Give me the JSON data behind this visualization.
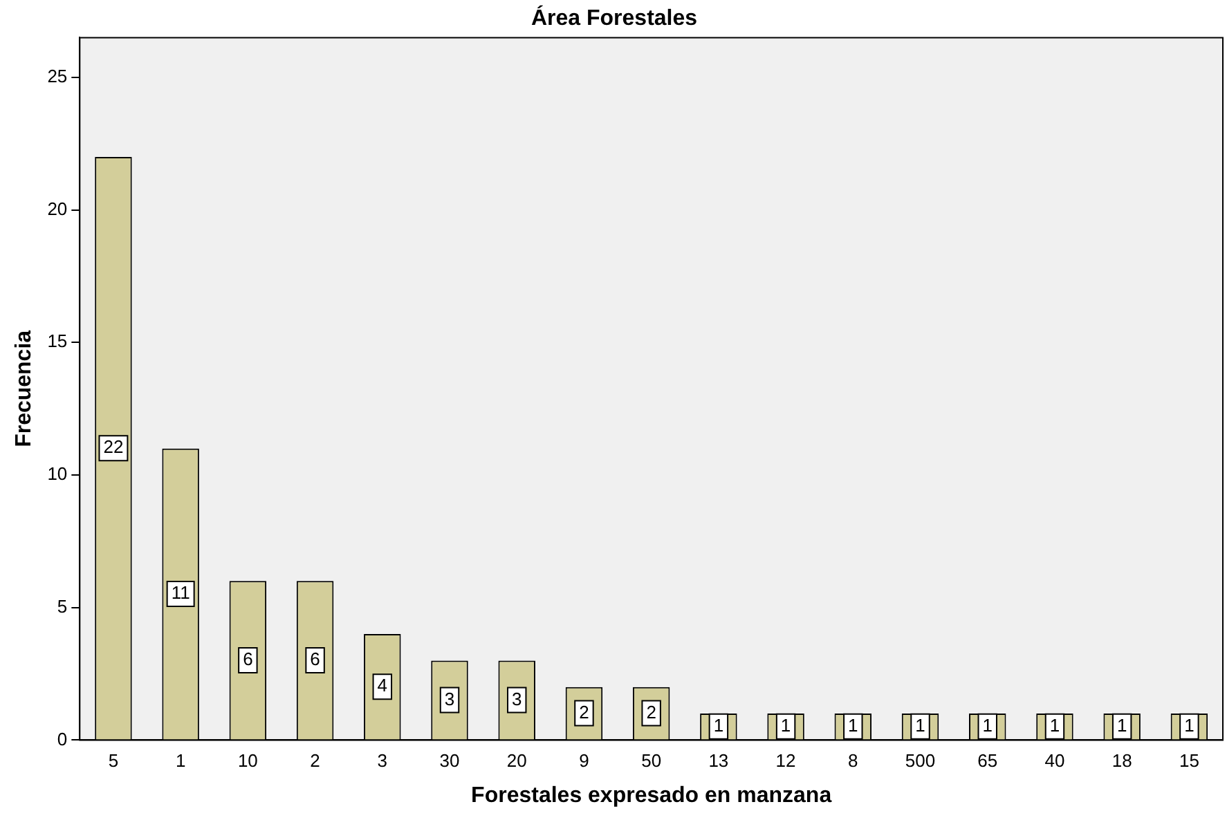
{
  "chart_data": {
    "type": "bar",
    "title": "Área Forestales",
    "xlabel": "Forestales expresado en manzana",
    "ylabel": "Frecuencia",
    "categories": [
      "5",
      "1",
      "10",
      "2",
      "3",
      "30",
      "20",
      "9",
      "50",
      "13",
      "12",
      "8",
      "500",
      "65",
      "40",
      "18",
      "15"
    ],
    "values": [
      22,
      11,
      6,
      6,
      4,
      3,
      3,
      2,
      2,
      1,
      1,
      1,
      1,
      1,
      1,
      1,
      1
    ],
    "color": "#d3ce9a",
    "ylim": [
      0,
      26.5
    ],
    "yticks": [
      0,
      5,
      10,
      15,
      20,
      25
    ],
    "grid": false,
    "legend": false,
    "data_labels": true
  }
}
